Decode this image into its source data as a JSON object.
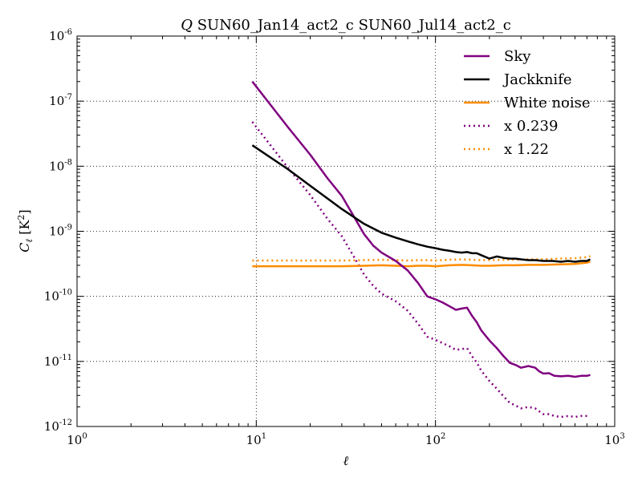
{
  "chart_data": {
    "type": "line",
    "title": {
      "prefix": "Q",
      "text": " SUN60_Jan14_act2_c SUN60_Jul14_act2_c"
    },
    "xlabel": "ℓ",
    "ylabel": {
      "symbol": "C",
      "subscript": "ℓ",
      "unit_prefix": " [K",
      "unit_exp": "2",
      "unit_suffix": "]"
    },
    "x_scale": "log",
    "y_scale": "log",
    "xlim": [
      1,
      1000
    ],
    "ylim": [
      1e-12,
      1e-06
    ],
    "grid": true,
    "legend_position": "top-right",
    "x_ticks": [
      {
        "base": "10",
        "exp": "0"
      },
      {
        "base": "10",
        "exp": "1"
      },
      {
        "base": "10",
        "exp": "2"
      },
      {
        "base": "10",
        "exp": "3"
      }
    ],
    "y_ticks": [
      {
        "base": "10",
        "exp": "-12"
      },
      {
        "base": "10",
        "exp": "-11"
      },
      {
        "base": "10",
        "exp": "-10"
      },
      {
        "base": "10",
        "exp": "-9"
      },
      {
        "base": "10",
        "exp": "-8"
      },
      {
        "base": "10",
        "exp": "-7"
      },
      {
        "base": "10",
        "exp": "-6"
      }
    ],
    "series": [
      {
        "name": "Sky",
        "color": "#800080",
        "style": "solid",
        "x": [
          9.5,
          15,
          20,
          25,
          30,
          35,
          40,
          45,
          50,
          60,
          70,
          80,
          90,
          100,
          110,
          120,
          130,
          140,
          150,
          160,
          170,
          180,
          200,
          220,
          240,
          260,
          280,
          300,
          330,
          360,
          380,
          400,
          430,
          460,
          500,
          550,
          600,
          650,
          700,
          730
        ],
        "y": [
          2e-07,
          4e-08,
          1.5e-08,
          6.5e-09,
          3.5e-09,
          1.7e-09,
          9e-10,
          6e-10,
          4.7e-10,
          3.5e-10,
          2.5e-10,
          1.6e-10,
          1e-10,
          9e-11,
          8e-11,
          7e-11,
          6.2e-11,
          6.5e-11,
          6.7e-11,
          5e-11,
          4e-11,
          3e-11,
          2.1e-11,
          1.6e-11,
          1.2e-11,
          9.5e-12,
          8.8e-12,
          8e-12,
          8.5e-12,
          8e-12,
          7e-12,
          6.5e-12,
          6.6e-12,
          6e-12,
          5.9e-12,
          6e-12,
          5.8e-12,
          6e-12,
          6e-12,
          6.2e-12
        ]
      },
      {
        "name": "Jackknife",
        "color": "#000000",
        "style": "solid",
        "x": [
          9.5,
          15,
          20,
          30,
          40,
          50,
          60,
          70,
          80,
          90,
          100,
          110,
          120,
          130,
          140,
          150,
          160,
          170,
          180,
          200,
          220,
          240,
          260,
          280,
          300,
          330,
          360,
          400,
          450,
          500,
          550,
          600,
          650,
          700,
          730
        ],
        "y": [
          2.1e-08,
          9e-09,
          5e-09,
          2.2e-09,
          1.3e-09,
          9.5e-10,
          8e-10,
          7e-10,
          6.3e-10,
          5.8e-10,
          5.5e-10,
          5.2e-10,
          5e-10,
          4.8e-10,
          4.7e-10,
          4.8e-10,
          4.6e-10,
          4.6e-10,
          4.3e-10,
          3.8e-10,
          4.1e-10,
          3.9e-10,
          3.8e-10,
          3.8e-10,
          3.7e-10,
          3.6e-10,
          3.6e-10,
          3.5e-10,
          3.5e-10,
          3.4e-10,
          3.5e-10,
          3.4e-10,
          3.5e-10,
          3.5e-10,
          3.7e-10
        ]
      },
      {
        "name": "White noise",
        "color": "#ff8c00",
        "style": "solid",
        "x": [
          9.5,
          15,
          20,
          30,
          40,
          50,
          60,
          70,
          80,
          90,
          100,
          120,
          140,
          160,
          180,
          200,
          240,
          280,
          330,
          400,
          500,
          600,
          700,
          730
        ],
        "y": [
          2.9e-10,
          2.9e-10,
          2.9e-10,
          2.9e-10,
          2.95e-10,
          3e-10,
          2.95e-10,
          2.9e-10,
          2.95e-10,
          2.95e-10,
          2.9e-10,
          3e-10,
          3.05e-10,
          3e-10,
          2.95e-10,
          2.95e-10,
          3e-10,
          3e-10,
          3.05e-10,
          3.05e-10,
          3.1e-10,
          3.15e-10,
          3.3e-10,
          3.4e-10
        ]
      },
      {
        "name": "x 0.239",
        "color": "#800080",
        "style": "dotted",
        "x": [
          9.5,
          15,
          20,
          25,
          30,
          35,
          40,
          45,
          50,
          60,
          70,
          80,
          90,
          100,
          110,
          120,
          130,
          140,
          150,
          160,
          170,
          180,
          200,
          220,
          240,
          260,
          280,
          300,
          330,
          360,
          380,
          400,
          430,
          460,
          500,
          550,
          600,
          650,
          700,
          730
        ],
        "y": [
          4.8e-08,
          9.5e-09,
          3.6e-09,
          1.55e-09,
          8.4e-10,
          4.1e-10,
          2.15e-10,
          1.45e-10,
          1.1e-10,
          8.4e-11,
          6e-11,
          3.8e-11,
          2.4e-11,
          2.15e-11,
          1.9e-11,
          1.7e-11,
          1.5e-11,
          1.55e-11,
          1.6e-11,
          1.2e-11,
          9.6e-12,
          7.2e-12,
          5e-12,
          3.8e-12,
          2.9e-12,
          2.3e-12,
          2.1e-12,
          1.9e-12,
          2e-12,
          1.9e-12,
          1.7e-12,
          1.55e-12,
          1.55e-12,
          1.45e-12,
          1.4e-12,
          1.45e-12,
          1.4e-12,
          1.45e-12,
          1.45e-12,
          1.45e-12
        ]
      },
      {
        "name": "x 1.22",
        "color": "#ff8c00",
        "style": "dotted",
        "x": [
          9.5,
          15,
          20,
          30,
          40,
          50,
          60,
          70,
          80,
          90,
          100,
          120,
          140,
          160,
          180,
          200,
          240,
          280,
          330,
          400,
          500,
          600,
          700,
          730
        ],
        "y": [
          3.55e-10,
          3.55e-10,
          3.55e-10,
          3.55e-10,
          3.6e-10,
          3.65e-10,
          3.6e-10,
          3.55e-10,
          3.6e-10,
          3.6e-10,
          3.55e-10,
          3.65e-10,
          3.7e-10,
          3.65e-10,
          3.6e-10,
          3.6e-10,
          3.65e-10,
          3.65e-10,
          3.7e-10,
          3.7e-10,
          3.8e-10,
          3.85e-10,
          4e-10,
          4.15e-10
        ]
      }
    ]
  }
}
